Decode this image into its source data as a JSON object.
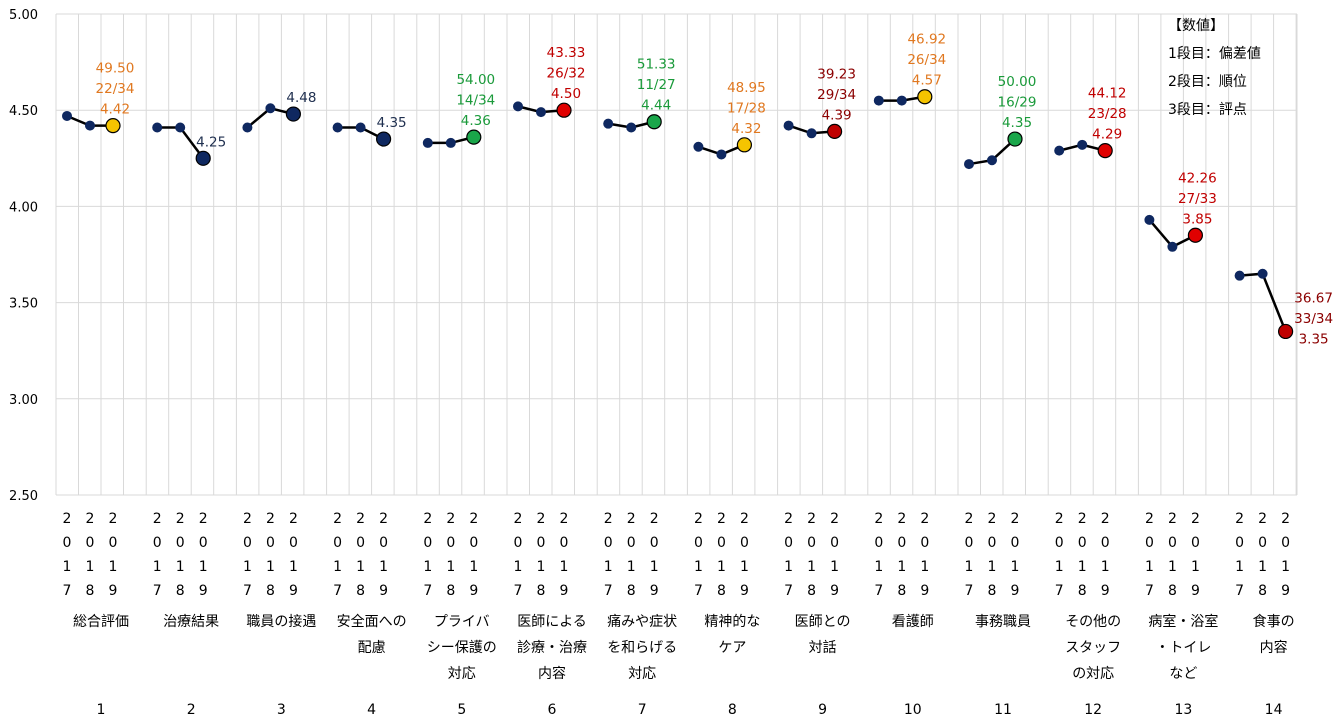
{
  "chart_data": {
    "type": "line",
    "ylim": [
      2.5,
      5.0
    ],
    "yticks": [
      "5.00",
      "4.50",
      "4.00",
      "3.50",
      "3.00",
      "2.50"
    ],
    "grid": true,
    "year_labels": [
      "2017",
      "2018",
      "2019"
    ],
    "legend": {
      "title": "【数値】",
      "lines": [
        "1段目：偏差値",
        "2段目：順位",
        "3段目：評点"
      ]
    },
    "groups": [
      {
        "num": "1",
        "label": [
          "総合評価"
        ],
        "values": [
          4.47,
          4.42,
          4.42
        ],
        "marker": "#F5C400",
        "text_color": "#E07820",
        "annotation": [
          "49.50",
          "22/34",
          "4.42"
        ]
      },
      {
        "num": "2",
        "label": [
          "治療結果"
        ],
        "values": [
          4.41,
          4.41,
          4.25
        ],
        "marker": "#0F2860",
        "text_color": "#1F2F4F",
        "annotation": [
          "4.25"
        ]
      },
      {
        "num": "3",
        "label": [
          "職員の接遇"
        ],
        "values": [
          4.41,
          4.51,
          4.48
        ],
        "marker": "#0F2860",
        "text_color": "#1F2F4F",
        "annotation": [
          "4.48"
        ]
      },
      {
        "num": "4",
        "label": [
          "安全面への",
          "配慮"
        ],
        "values": [
          4.41,
          4.41,
          4.35
        ],
        "marker": "#0F2860",
        "text_color": "#1F2F4F",
        "annotation": [
          "4.35"
        ]
      },
      {
        "num": "5",
        "label": [
          "プライバ",
          "シー保護の",
          "対応"
        ],
        "values": [
          4.33,
          4.33,
          4.36
        ],
        "marker": "#1AA64A",
        "text_color": "#1A9A3A",
        "annotation": [
          "54.00",
          "14/34",
          "4.36"
        ]
      },
      {
        "num": "6",
        "label": [
          "医師による",
          "診療・治療",
          "内容"
        ],
        "values": [
          4.52,
          4.49,
          4.5
        ],
        "marker": "#E00000",
        "text_color": "#C00000",
        "annotation": [
          "43.33",
          "26/32",
          "4.50"
        ]
      },
      {
        "num": "7",
        "label": [
          "痛みや症状",
          "を和らげる",
          "対応"
        ],
        "values": [
          4.43,
          4.41,
          4.44
        ],
        "marker": "#1AA64A",
        "text_color": "#1A9A3A",
        "annotation": [
          "51.33",
          "11/27",
          "4.44"
        ]
      },
      {
        "num": "8",
        "label": [
          "精神的な",
          "ケア"
        ],
        "values": [
          4.31,
          4.27,
          4.32
        ],
        "marker": "#F5C400",
        "text_color": "#E07820",
        "annotation": [
          "48.95",
          "17/28",
          "4.32"
        ]
      },
      {
        "num": "9",
        "label": [
          "医師との",
          "対話"
        ],
        "values": [
          4.42,
          4.38,
          4.39
        ],
        "marker": "#C00000",
        "text_color": "#8B0000",
        "annotation": [
          "39.23",
          "29/34",
          "4.39"
        ]
      },
      {
        "num": "10",
        "label": [
          "看護師"
        ],
        "values": [
          4.55,
          4.55,
          4.57
        ],
        "marker": "#F5C400",
        "text_color": "#E07820",
        "annotation": [
          "46.92",
          "26/34",
          "4.57"
        ]
      },
      {
        "num": "11",
        "label": [
          "事務職員"
        ],
        "values": [
          4.22,
          4.24,
          4.35
        ],
        "marker": "#1AA64A",
        "text_color": "#1A9A3A",
        "annotation": [
          "50.00",
          "16/29",
          "4.35"
        ]
      },
      {
        "num": "12",
        "label": [
          "その他の",
          "スタッフ",
          "の対応"
        ],
        "values": [
          4.29,
          4.32,
          4.29
        ],
        "marker": "#E00000",
        "text_color": "#C00000",
        "annotation": [
          "44.12",
          "23/28",
          "4.29"
        ]
      },
      {
        "num": "13",
        "label": [
          "病室・浴室",
          "・トイレ",
          "など"
        ],
        "values": [
          3.93,
          3.79,
          3.85
        ],
        "marker": "#E00000",
        "text_color": "#C00000",
        "annotation": [
          "42.26",
          "27/33",
          "3.85"
        ]
      },
      {
        "num": "14",
        "label": [
          "食事の",
          "内容"
        ],
        "values": [
          3.64,
          3.65,
          3.35
        ],
        "marker": "#C00000",
        "text_color": "#8B0000",
        "annotation": [
          "36.67",
          "33/34",
          "3.35"
        ]
      }
    ]
  }
}
